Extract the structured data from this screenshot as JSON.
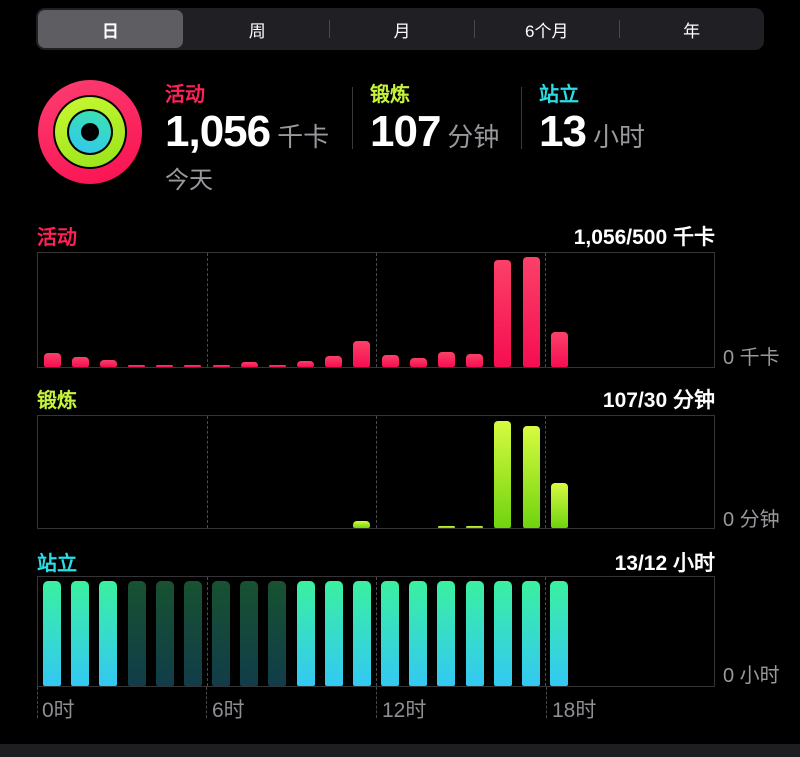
{
  "segmented_control": {
    "options": [
      "日",
      "周",
      "月",
      "6个月",
      "年"
    ],
    "selected": "日",
    "selected_index": 0
  },
  "summary": {
    "date_label": "今天",
    "stats": [
      {
        "label": "活动",
        "value": "1,056",
        "unit": "千卡",
        "color": "#fd2158"
      },
      {
        "label": "锻炼",
        "value": "107",
        "unit": "分钟",
        "color": "#c6f43c"
      },
      {
        "label": "站立",
        "value": "13",
        "unit": "小时",
        "color": "#2bdde4"
      }
    ],
    "rings_icon": {
      "outer_ring": "activity-ring",
      "middle_ring": "exercise-ring",
      "inner_ring": "stand-ring",
      "colors": {
        "activity": "#fa1d58",
        "exercise": "#b7f62b",
        "stand": "#2fd0e8"
      }
    }
  },
  "x_axis": {
    "ticks": [
      "0时",
      "6时",
      "12时",
      "18时"
    ]
  },
  "chart_data": [
    {
      "type": "bar",
      "title": "活动",
      "header_value": "1,056/500 千卡",
      "baseline_label": "0 千卡",
      "bar_color_top": "#fb4168",
      "bar_color_bottom": "#f60d51",
      "x_unit": "hour",
      "x_ticks": [
        "0时",
        "6时",
        "12时",
        "18时"
      ],
      "ymax": 310,
      "values": [
        37,
        26,
        20,
        6,
        6,
        4,
        6,
        13,
        6,
        16,
        29,
        72,
        32,
        24,
        40,
        35,
        290,
        300,
        94,
        0,
        0,
        0,
        0,
        0
      ]
    },
    {
      "type": "bar",
      "title": "锻炼",
      "header_value": "107/30 分钟",
      "baseline_label": "0 分钟",
      "bar_color_top": "#d7fb40",
      "bar_color_bottom": "#70d30f",
      "x_unit": "hour",
      "x_ticks": [
        "0时",
        "6时",
        "12时",
        "18时"
      ],
      "ymax": 45,
      "values": [
        0,
        0,
        0,
        0,
        0,
        0,
        0,
        0,
        0,
        0,
        0,
        3,
        0,
        0,
        1,
        1,
        43,
        41,
        18,
        0,
        0,
        0,
        0,
        0
      ]
    },
    {
      "type": "bar",
      "title": "站立",
      "header_value": "13/12 小时",
      "baseline_label": "0 小时",
      "bar_color_on_top": "#3bf0a0",
      "bar_color_on_bottom": "#33c8f3",
      "bar_color_dim_top": "#175231",
      "bar_color_dim_bottom": "#113c49",
      "x_unit": "hour",
      "x_ticks": [
        "0时",
        "6时",
        "12时",
        "18时"
      ],
      "ymax": 1,
      "values": [
        1,
        1,
        1,
        1,
        1,
        1,
        1,
        1,
        1,
        1,
        1,
        1,
        1,
        1,
        1,
        1,
        1,
        1,
        1,
        0,
        0,
        0,
        0,
        0
      ],
      "states": [
        "on",
        "on",
        "on",
        "dim",
        "dim",
        "dim",
        "dim",
        "dim",
        "dim",
        "on",
        "on",
        "on",
        "on",
        "on",
        "on",
        "on",
        "on",
        "on",
        "on",
        "none",
        "none",
        "none",
        "none",
        "none"
      ]
    }
  ]
}
